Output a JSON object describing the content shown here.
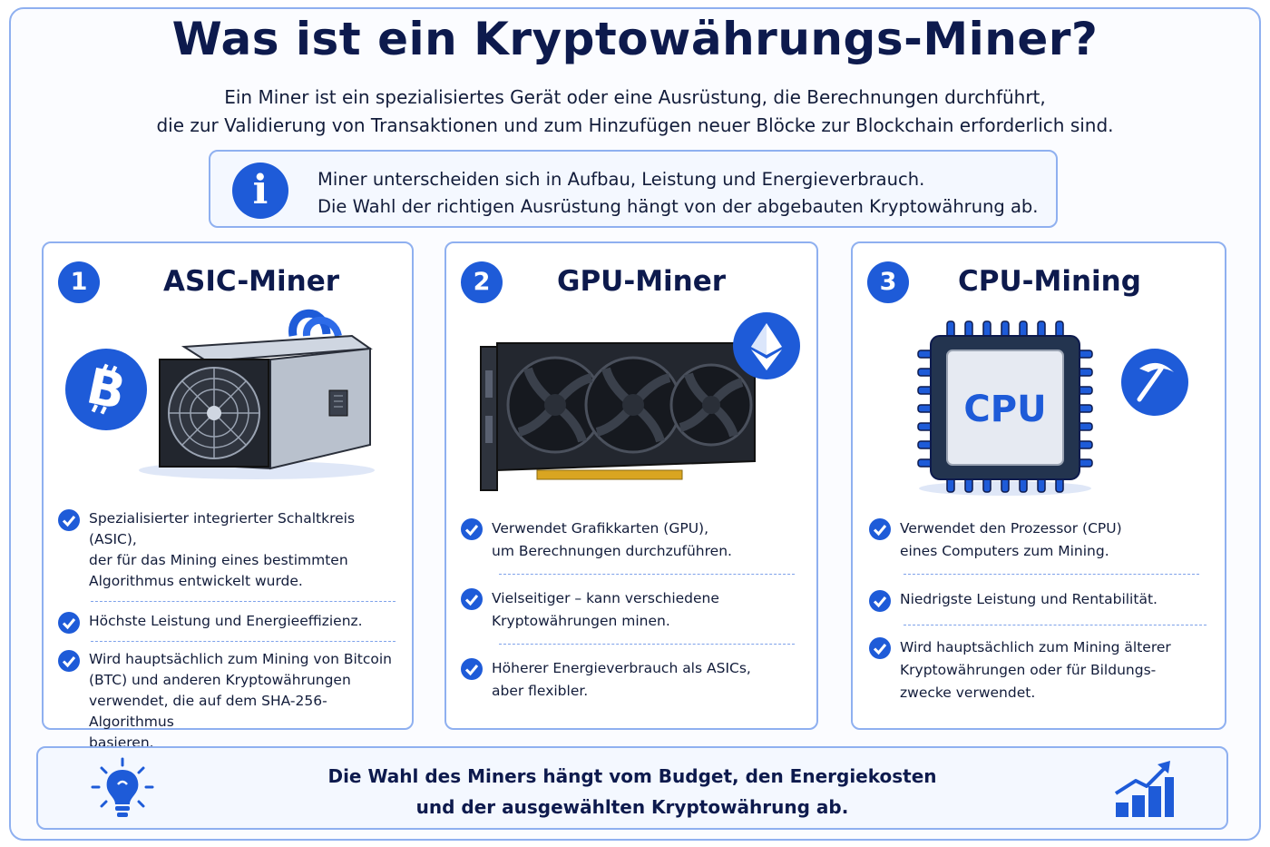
{
  "header": {
    "title": "Was ist ein Kryptowährungs-Miner?",
    "subtitle_line1": "Ein Miner ist ein spezialisiertes Gerät oder eine Ausrüstung, die Berechnungen durchführt,",
    "subtitle_line2": "die zur Validierung von Transaktionen und zum Hinzufügen neuer Blöcke zur Blockchain erforderlich sind."
  },
  "info": {
    "icon": "i",
    "line1": "Miner unterscheiden sich in Aufbau, Leistung und Energieverbrauch.",
    "line2": "Die Wahl der richtigen Ausrüstung hängt von der abgebauten Kryptowährung ab."
  },
  "cards": [
    {
      "number": "1",
      "title": "ASIC-Miner",
      "coin_icon": "bitcoin-icon",
      "bullets": [
        [
          "Spezialisierter integrierter Schaltkreis (ASIC),",
          "der für das Mining eines bestimmten",
          "Algorithmus entwickelt wurde."
        ],
        [
          "Höchste Leistung und Energieeffizienz."
        ],
        [
          "Wird hauptsächlich zum Mining von Bitcoin",
          "(BTC) und anderen Kryptowährungen",
          "verwendet, die auf dem SHA-256-Algorithmus",
          "basieren."
        ]
      ]
    },
    {
      "number": "2",
      "title": "GPU-Miner",
      "coin_icon": "ethereum-icon",
      "bullets": [
        [
          "Verwendet Grafikkarten (GPU),",
          "um Berechnungen durchzuführen."
        ],
        [
          "Vielseitiger – kann verschiedene",
          "Kryptowährungen minen."
        ],
        [
          "Höherer Energieverbrauch als ASICs,",
          "aber flexibler."
        ]
      ]
    },
    {
      "number": "3",
      "title": "CPU-Mining",
      "coin_icon": "pickaxe-icon",
      "chip_label": "CPU",
      "bullets": [
        [
          "Verwendet den Prozessor (CPU)",
          "eines Computers zum Mining."
        ],
        [
          "Niedrigste Leistung und Rentabilität."
        ],
        [
          "Wird hauptsächlich zum Mining älterer",
          "Kryptowährungen oder für Bildungs-",
          "zwecke verwendet."
        ]
      ]
    }
  ],
  "footer": {
    "line1": "Die Wahl des Miners hängt vom Budget, den Energiekosten",
    "line2": "und der ausgewählten Kryptowährung ab."
  },
  "colors": {
    "accent": "#1e5bd8",
    "border": "#8fb0f0",
    "title": "#0d1a4d"
  }
}
